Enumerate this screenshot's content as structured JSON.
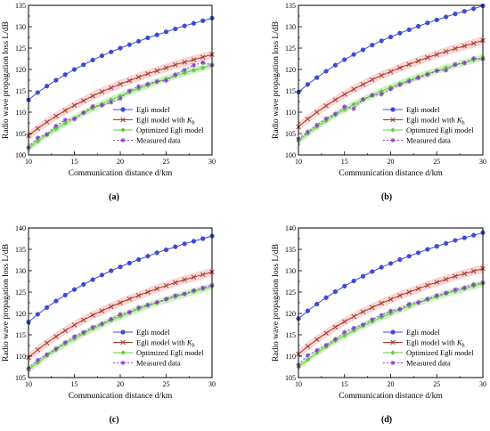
{
  "legend_labels": {
    "egli": "Egli model",
    "egli_kh_prefix": "Egli model with ",
    "egli_kh_symbol": "K",
    "egli_kh_sub": "h",
    "optimized": "Optimized Egli model",
    "measured": "Measured data"
  },
  "colors": {
    "egli": "#3b4bd6",
    "egli_kh": "#a83a2a",
    "egli_kh_band": "#f6c9c9",
    "optimized": "#5fcf3a",
    "optimized_band": "#bfeab0",
    "measured": "#8a3fc9"
  },
  "markers": {
    "egli": "circle",
    "egli_kh": "x",
    "optimized": "diamond",
    "measured": "star"
  },
  "chart_data": [
    {
      "type": "line",
      "panel_label": "(a)",
      "xlabel": "Communication distance d/km",
      "ylabel": "Radio wave propagation loss L/dB",
      "xlim": [
        10,
        30
      ],
      "ylim": [
        100,
        135
      ],
      "xticks": [
        10,
        15,
        20,
        25,
        30
      ],
      "yticks": [
        100,
        105,
        110,
        115,
        120,
        125,
        130,
        135
      ],
      "legend_position": "center-right",
      "x": [
        10,
        11,
        12,
        13,
        14,
        15,
        16,
        17,
        18,
        19,
        20,
        21,
        22,
        23,
        24,
        25,
        26,
        27,
        28,
        29,
        30
      ],
      "series": [
        {
          "name": "Egli model",
          "key": "egli",
          "values": [
            112.9,
            114.6,
            116.1,
            117.5,
            118.8,
            120.0,
            121.1,
            122.2,
            123.2,
            124.1,
            125.0,
            125.8,
            126.6,
            127.4,
            128.1,
            128.8,
            129.5,
            130.2,
            130.8,
            131.4,
            132.0
          ]
        },
        {
          "name": "Egli model with Kh",
          "key": "egli_kh",
          "values": [
            104.5,
            106.2,
            107.7,
            109.1,
            110.4,
            111.6,
            112.7,
            113.8,
            114.8,
            115.7,
            116.6,
            117.4,
            118.2,
            119.0,
            119.7,
            120.4,
            121.1,
            121.7,
            122.3,
            122.9,
            123.5
          ]
        },
        {
          "name": "Optimized Egli model",
          "key": "optimized",
          "values": [
            101.5,
            103.2,
            104.7,
            106.1,
            107.4,
            108.6,
            109.8,
            110.9,
            111.9,
            112.9,
            113.8,
            114.7,
            115.5,
            116.3,
            117.1,
            117.8,
            118.5,
            119.2,
            119.8,
            120.4,
            121.0
          ]
        },
        {
          "name": "Measured data",
          "key": "measured",
          "values": [
            101.8,
            104.0,
            104.8,
            106.8,
            108.2,
            108.4,
            109.9,
            111.4,
            111.6,
            112.3,
            113.2,
            115.0,
            116.0,
            116.6,
            117.2,
            117.4,
            118.8,
            119.9,
            121.0,
            121.6,
            121.0
          ]
        }
      ]
    },
    {
      "type": "line",
      "panel_label": "(b)",
      "xlabel": "Communication distance d/km",
      "ylabel": "Radio wave propagation loss L/dB",
      "xlim": [
        10,
        30
      ],
      "ylim": [
        100,
        135
      ],
      "xticks": [
        10,
        15,
        20,
        25,
        30
      ],
      "yticks": [
        100,
        105,
        110,
        115,
        120,
        125,
        130,
        135
      ],
      "legend_position": "center-right",
      "x": [
        10,
        11,
        12,
        13,
        14,
        15,
        16,
        17,
        18,
        19,
        20,
        21,
        22,
        23,
        24,
        25,
        26,
        27,
        28,
        29,
        30
      ],
      "series": [
        {
          "name": "Egli model",
          "key": "egli",
          "values": [
            114.7,
            116.5,
            118.1,
            119.6,
            121.0,
            122.3,
            123.5,
            124.6,
            125.7,
            126.7,
            127.6,
            128.5,
            129.3,
            130.1,
            130.9,
            131.6,
            132.3,
            133.0,
            133.6,
            134.2,
            134.9
          ]
        },
        {
          "name": "Egli model with Kh",
          "key": "egli_kh",
          "values": [
            106.6,
            108.4,
            110.0,
            111.5,
            112.9,
            114.2,
            115.4,
            116.5,
            117.6,
            118.6,
            119.5,
            120.4,
            121.2,
            122.0,
            122.8,
            123.5,
            124.2,
            124.9,
            125.5,
            126.1,
            126.8
          ]
        },
        {
          "name": "Optimized Egli model",
          "key": "optimized",
          "values": [
            103.3,
            105.0,
            106.6,
            108.0,
            109.4,
            110.6,
            111.8,
            112.9,
            113.9,
            114.9,
            115.8,
            116.7,
            117.5,
            118.3,
            119.0,
            119.7,
            120.4,
            121.0,
            121.6,
            122.2,
            122.8
          ]
        },
        {
          "name": "Measured data",
          "key": "measured",
          "values": [
            103.8,
            105.4,
            107.0,
            108.5,
            109.6,
            111.3,
            110.8,
            113.0,
            114.0,
            114.2,
            115.4,
            116.4,
            117.2,
            118.0,
            118.8,
            119.7,
            119.8,
            121.2,
            121.5,
            122.6,
            122.4
          ]
        }
      ]
    },
    {
      "type": "line",
      "panel_label": "(c)",
      "xlabel": "Communication distance d/km",
      "ylabel": "Radio wave propagation loss L/dB",
      "xlim": [
        10,
        30
      ],
      "ylim": [
        105,
        140
      ],
      "xticks": [
        10,
        15,
        20,
        25,
        30
      ],
      "yticks": [
        105,
        110,
        115,
        120,
        125,
        130,
        135,
        140
      ],
      "legend_position": "center-right",
      "x": [
        10,
        11,
        12,
        13,
        14,
        15,
        16,
        17,
        18,
        19,
        20,
        21,
        22,
        23,
        24,
        25,
        26,
        27,
        28,
        29,
        30
      ],
      "series": [
        {
          "name": "Egli model",
          "key": "egli",
          "values": [
            118.0,
            119.8,
            121.4,
            122.9,
            124.3,
            125.6,
            126.8,
            127.9,
            129.0,
            130.0,
            130.9,
            131.8,
            132.6,
            133.4,
            134.2,
            134.9,
            135.6,
            136.3,
            136.9,
            137.5,
            138.1
          ]
        },
        {
          "name": "Egli model with Kh",
          "key": "egli_kh",
          "values": [
            109.7,
            111.5,
            113.1,
            114.6,
            116.0,
            117.3,
            118.5,
            119.6,
            120.6,
            121.6,
            122.5,
            123.4,
            124.2,
            125.0,
            125.8,
            126.5,
            127.2,
            127.9,
            128.5,
            129.1,
            129.7
          ]
        },
        {
          "name": "Optimized Egli model",
          "key": "optimized",
          "values": [
            106.8,
            108.5,
            110.1,
            111.5,
            112.9,
            114.1,
            115.3,
            116.4,
            117.4,
            118.4,
            119.3,
            120.2,
            121.0,
            121.8,
            122.5,
            123.2,
            123.9,
            124.5,
            125.1,
            125.7,
            126.3
          ]
        },
        {
          "name": "Measured data",
          "key": "measured",
          "values": [
            107.2,
            109.1,
            110.4,
            111.8,
            113.2,
            114.6,
            115.6,
            116.8,
            117.6,
            118.7,
            119.8,
            120.3,
            121.4,
            122.0,
            122.6,
            123.4,
            124.2,
            124.6,
            125.4,
            126.0,
            126.6
          ]
        }
      ]
    },
    {
      "type": "line",
      "panel_label": "(d)",
      "xlabel": "Communication distance d/km",
      "ylabel": "Radio wave propagation loss L/dB",
      "xlim": [
        10,
        30
      ],
      "ylim": [
        105,
        140
      ],
      "xticks": [
        10,
        15,
        20,
        25,
        30
      ],
      "yticks": [
        105,
        110,
        115,
        120,
        125,
        130,
        135,
        140
      ],
      "legend_position": "center-right",
      "x": [
        10,
        11,
        12,
        13,
        14,
        15,
        16,
        17,
        18,
        19,
        20,
        21,
        22,
        23,
        24,
        25,
        26,
        27,
        28,
        29,
        30
      ],
      "series": [
        {
          "name": "Egli model",
          "key": "egli",
          "values": [
            118.8,
            120.6,
            122.2,
            123.7,
            125.1,
            126.4,
            127.6,
            128.7,
            129.8,
            130.8,
            131.7,
            132.6,
            133.4,
            134.2,
            135.0,
            135.7,
            136.4,
            137.1,
            137.7,
            138.3,
            138.9
          ]
        },
        {
          "name": "Egli model with Kh",
          "key": "egli_kh",
          "values": [
            110.5,
            112.3,
            113.9,
            115.4,
            116.8,
            118.1,
            119.3,
            120.4,
            121.4,
            122.4,
            123.3,
            124.2,
            125.0,
            125.8,
            126.6,
            127.3,
            128.0,
            128.7,
            129.3,
            129.9,
            130.5
          ]
        },
        {
          "name": "Optimized Egli model",
          "key": "optimized",
          "values": [
            107.5,
            109.2,
            110.8,
            112.2,
            113.6,
            114.8,
            116.0,
            117.1,
            118.1,
            119.1,
            120.0,
            120.9,
            121.7,
            122.5,
            123.2,
            123.9,
            124.6,
            125.2,
            125.8,
            126.4,
            127.0
          ]
        },
        {
          "name": "Measured data",
          "key": "measured",
          "values": [
            108.0,
            110.2,
            111.4,
            112.6,
            114.0,
            115.6,
            116.6,
            117.4,
            118.6,
            119.6,
            120.6,
            121.0,
            122.2,
            122.6,
            123.4,
            124.2,
            124.8,
            125.6,
            126.0,
            126.8,
            127.2
          ]
        }
      ]
    }
  ]
}
